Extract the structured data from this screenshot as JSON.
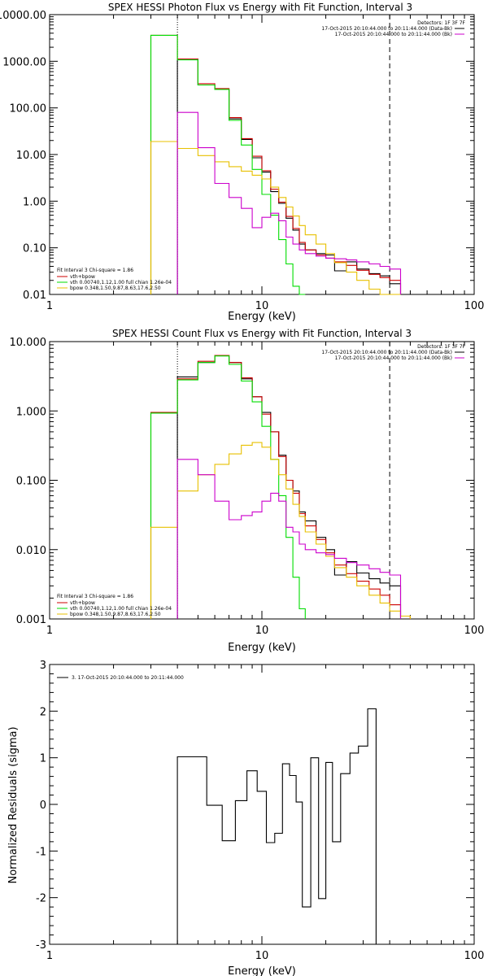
{
  "colors": {
    "data": "#000000",
    "total": "#cc0000",
    "vth": "#00dd00",
    "bpow": "#e8c000",
    "background": "#cc00cc"
  },
  "chart_data": [
    {
      "type": "line",
      "title": "SPEX HESSI Photon Flux vs Energy with Fit Function, Interval 3",
      "xlabel": "Energy (keV)",
      "ylabel": "",
      "xscale": "log",
      "yscale": "log",
      "xlim": [
        1,
        100
      ],
      "ylim": [
        0.01,
        10000
      ],
      "xticks": [
        {
          "v": 1,
          "label": "1"
        },
        {
          "v": 10,
          "label": "10"
        },
        {
          "v": 100,
          "label": "100"
        }
      ],
      "yticks": [
        {
          "v": 0.01,
          "label": "0.01"
        },
        {
          "v": 0.1,
          "label": "0.10"
        },
        {
          "v": 1,
          "label": "1.00"
        },
        {
          "v": 10,
          "label": "10.00"
        },
        {
          "v": 100,
          "label": "100.00"
        },
        {
          "v": 1000,
          "label": "1000.00"
        },
        {
          "v": 10000,
          "label": "10000.00"
        }
      ],
      "vlines": [
        {
          "x": 4.0,
          "style": "dotted"
        },
        {
          "x": 40.0,
          "style": "dashed"
        }
      ],
      "legend_top": [
        "Detectors: 1F 3F 7F",
        "17-Oct-2015 20:10:44.000 to 20:11:44.000 (Data-Bk)",
        "17-Oct-2015 20:10:44.000 to 20:11:44.000 (Bk)"
      ],
      "legend_bottom": [
        "Fit Interval 3   Chi-square = 1.86",
        "vth+bpow",
        "vth 0.00740,1.12,1.00  full chian 1.26e-04",
        "bpow 0.348,1.50,9.87,8.63,17.6,2.50"
      ],
      "edges": [
        3.0,
        4.0,
        5.0,
        6.0,
        7.0,
        8.0,
        9.0,
        10.0,
        11.0,
        12.0,
        13.0,
        14.0,
        15.0,
        16.0,
        18.0,
        20.0,
        22.0,
        25.0,
        28.0,
        32.0,
        36.0,
        40.0,
        45.0
      ],
      "series": [
        {
          "name": "",
          "key": "data",
          "values": [
            null,
            1120,
            310,
            250,
            58,
            21,
            8.5,
            4.2,
            1.6,
            0.9,
            0.43,
            0.24,
            0.12,
            0.09,
            0.075,
            0.07,
            0.032,
            0.05,
            0.035,
            0.028,
            0.025,
            0.017,
            null
          ]
        },
        {
          "name": "vth+bpow",
          "key": "total",
          "values": [
            3600,
            1120,
            330,
            260,
            62,
            22,
            9.2,
            4.5,
            1.8,
            0.95,
            0.47,
            0.26,
            0.13,
            0.09,
            0.07,
            0.06,
            0.05,
            0.042,
            0.033,
            0.027,
            0.023,
            0.02,
            null
          ]
        },
        {
          "name": "vth 0.00740,1.12,1.00  full chian 1.26e-04",
          "key": "vth",
          "values": [
            3600,
            1070,
            310,
            250,
            54,
            16,
            4.8,
            1.4,
            0.5,
            0.15,
            0.045,
            0.015,
            0.005,
            null,
            null,
            null,
            null,
            null,
            null,
            null,
            null,
            null,
            null
          ]
        },
        {
          "name": "bpow 0.348,1.50,9.87,8.63,17.6,2.50",
          "key": "bpow",
          "values": [
            19,
            13.5,
            9.5,
            7.0,
            5.5,
            4.4,
            3.6,
            3.0,
            2.0,
            1.2,
            0.75,
            0.48,
            0.3,
            0.19,
            0.12,
            0.075,
            0.048,
            0.03,
            0.02,
            0.013,
            0.009,
            0.006,
            null
          ]
        },
        {
          "name": "",
          "key": "background",
          "values": [
            null,
            80,
            14,
            2.4,
            1.2,
            0.7,
            0.27,
            0.45,
            0.55,
            0.38,
            0.17,
            0.12,
            0.09,
            0.075,
            0.066,
            0.06,
            0.058,
            0.055,
            0.05,
            0.045,
            0.04,
            0.035,
            null
          ]
        }
      ]
    },
    {
      "type": "line",
      "title": "SPEX HESSI Count Flux vs Energy with Fit Function, Interval 3",
      "xlabel": "Energy (keV)",
      "ylabel": "",
      "xscale": "log",
      "yscale": "log",
      "xlim": [
        1,
        100
      ],
      "ylim": [
        0.001,
        10
      ],
      "xticks": [
        {
          "v": 1,
          "label": "1"
        },
        {
          "v": 10,
          "label": "10"
        },
        {
          "v": 100,
          "label": "100"
        }
      ],
      "yticks": [
        {
          "v": 0.001,
          "label": "0.001"
        },
        {
          "v": 0.01,
          "label": "0.010"
        },
        {
          "v": 0.1,
          "label": "0.100"
        },
        {
          "v": 1,
          "label": "1.000"
        },
        {
          "v": 10,
          "label": "10.000"
        }
      ],
      "vlines": [
        {
          "x": 4.0,
          "style": "dotted"
        },
        {
          "x": 40.0,
          "style": "dashed"
        }
      ],
      "legend_top": [
        "Detectors: 1F 3F 7F",
        "17-Oct-2015 20:10:44.000 to 20:11:44.000 (Data-Bk)",
        "17-Oct-2015 20:10:44.000 to 20:11:44.000 (Bk)"
      ],
      "legend_bottom": [
        "Fit Interval 3   Chi-square = 1.86",
        "vth+bpow",
        "vth 0.00740,1.12,1.00  full chian 1.26e-04",
        "bpow 0.348,1.50,9.87,8.63,17.6,2.50"
      ],
      "edges": [
        3.0,
        4.0,
        5.0,
        6.0,
        7.0,
        8.0,
        9.0,
        10.0,
        11.0,
        12.0,
        13.0,
        14.0,
        15.0,
        16.0,
        18.0,
        20.0,
        22.0,
        25.0,
        28.0,
        32.0,
        36.0,
        40.0,
        45.0,
        50.0
      ],
      "series": [
        {
          "name": "",
          "key": "data",
          "values": [
            null,
            3.1,
            5.0,
            6.3,
            5.0,
            2.9,
            1.6,
            0.95,
            0.5,
            0.23,
            0.1,
            0.07,
            0.035,
            0.026,
            0.015,
            0.01,
            0.0043,
            0.0067,
            0.0046,
            0.0038,
            0.0033,
            0.003,
            null,
            null
          ]
        },
        {
          "name": "vth+bpow",
          "key": "total",
          "values": [
            0.95,
            2.9,
            5.2,
            6.3,
            5.0,
            3.0,
            1.6,
            0.9,
            0.5,
            0.22,
            0.1,
            0.065,
            0.033,
            0.022,
            0.014,
            0.009,
            0.006,
            0.0045,
            0.0035,
            0.0027,
            0.0022,
            0.0016,
            0.0011,
            null
          ]
        },
        {
          "name": "vth 0.00740,1.12,1.00  full chian 1.26e-04",
          "key": "vth",
          "values": [
            0.93,
            2.8,
            5.0,
            6.2,
            4.7,
            2.7,
            1.35,
            0.6,
            0.2,
            0.06,
            0.015,
            0.004,
            0.0014,
            null,
            null,
            null,
            null,
            null,
            null,
            null,
            null,
            null,
            null,
            null
          ]
        },
        {
          "name": "bpow 0.348,1.50,9.87,8.63,17.6,2.50",
          "key": "bpow",
          "values": [
            0.021,
            0.07,
            0.12,
            0.17,
            0.24,
            0.32,
            0.35,
            0.3,
            0.2,
            0.12,
            0.075,
            0.045,
            0.03,
            0.018,
            0.012,
            0.008,
            0.0055,
            0.004,
            0.003,
            0.0022,
            0.0017,
            0.0013,
            0.0011,
            null
          ]
        },
        {
          "name": "",
          "key": "background",
          "values": [
            null,
            0.2,
            0.12,
            0.05,
            0.027,
            0.031,
            0.035,
            0.05,
            0.065,
            0.05,
            0.021,
            0.018,
            0.012,
            0.01,
            0.009,
            0.0085,
            0.0075,
            0.0065,
            0.006,
            0.0053,
            0.0047,
            0.0043,
            null,
            null
          ]
        }
      ]
    },
    {
      "type": "line",
      "title": "",
      "xlabel": "Energy (keV)",
      "ylabel": "Normalized Residuals (sigma)",
      "xscale": "log",
      "yscale": "linear",
      "xlim": [
        1,
        100
      ],
      "ylim": [
        -3,
        3
      ],
      "xticks": [
        {
          "v": 1,
          "label": "1"
        },
        {
          "v": 10,
          "label": "10"
        },
        {
          "v": 100,
          "label": "100"
        }
      ],
      "yticks": [
        {
          "v": -3,
          "label": "-3"
        },
        {
          "v": -2,
          "label": "-2"
        },
        {
          "v": -1,
          "label": "-1"
        },
        {
          "v": 0,
          "label": "0"
        },
        {
          "v": 1,
          "label": "1"
        },
        {
          "v": 2,
          "label": "2"
        },
        {
          "v": 3,
          "label": "3"
        }
      ],
      "legend_top": [
        "3. 17-Oct-2015 20:10:44.000 to 20:11:44.000"
      ],
      "edges": [
        4.0,
        5.0,
        5.5,
        6.5,
        7.5,
        8.5,
        9.5,
        10.5,
        11.5,
        12.5,
        13.5,
        14.5,
        15.5,
        17.0,
        18.5,
        20.0,
        21.5,
        23.5,
        26.0,
        28.5,
        31.5,
        34.5,
        38.0,
        42.0
      ],
      "series": [
        {
          "name": "",
          "key": "data",
          "values": [
            1.02,
            1.02,
            -0.02,
            -0.78,
            0.08,
            0.72,
            0.28,
            -0.82,
            -0.62,
            0.87,
            0.62,
            0.05,
            -2.2,
            1.0,
            -2.02,
            0.9,
            -0.8,
            0.66,
            1.1,
            1.25,
            2.05,
            null,
            null
          ]
        }
      ]
    }
  ]
}
